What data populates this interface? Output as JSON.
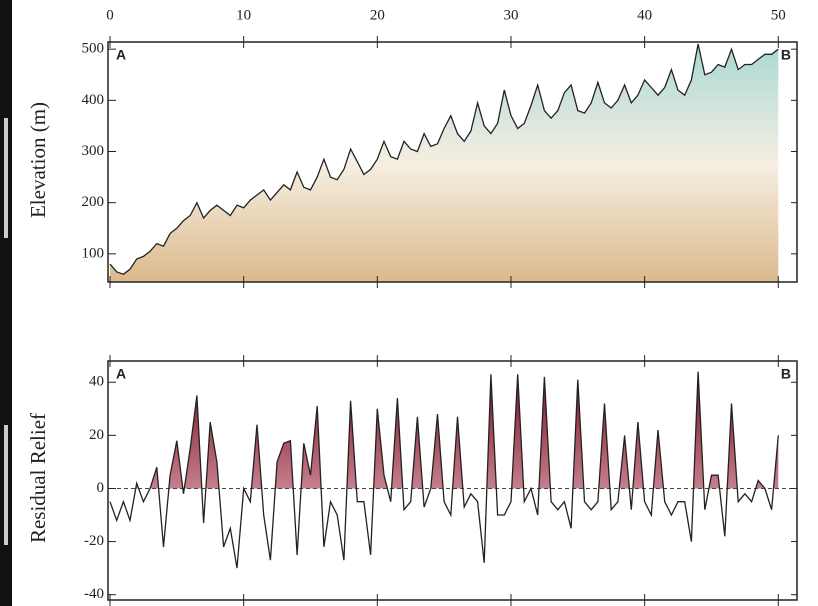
{
  "chart_data": [
    {
      "type": "line",
      "y_label": "Elevation (m)",
      "annotations": [
        "A",
        "B"
      ],
      "xlim": [
        0,
        51.4
      ],
      "xticks": [
        0,
        10,
        20,
        30,
        40,
        50
      ],
      "ylim": [
        45,
        514
      ],
      "yticks": [
        100,
        200,
        300,
        400,
        500
      ],
      "x": [
        0,
        0.5,
        1,
        1.5,
        2,
        2.5,
        3,
        3.5,
        4,
        4.5,
        5,
        5.5,
        6,
        6.5,
        7,
        7.5,
        8,
        8.5,
        9,
        9.5,
        10,
        10.5,
        11,
        11.5,
        12,
        12.5,
        13,
        13.5,
        14,
        14.5,
        15,
        15.5,
        16,
        16.5,
        17,
        17.5,
        18,
        18.5,
        19,
        19.5,
        20,
        20.5,
        21,
        21.5,
        22,
        22.5,
        23,
        23.5,
        24,
        24.5,
        25,
        25.5,
        26,
        26.5,
        27,
        27.5,
        28,
        28.5,
        29,
        29.5,
        30,
        30.5,
        31,
        31.5,
        32,
        32.5,
        33,
        33.5,
        34,
        34.5,
        35,
        35.5,
        36,
        36.5,
        37,
        37.5,
        38,
        38.5,
        39,
        39.5,
        40,
        40.5,
        41,
        41.5,
        42,
        42.5,
        43,
        43.5,
        44,
        44.5,
        45,
        45.5,
        46,
        46.5,
        47,
        47.5,
        48,
        48.5,
        49,
        49.5,
        50
      ],
      "series": [
        {
          "color": "#222222",
          "values": [
            80,
            65,
            60,
            70,
            90,
            95,
            105,
            120,
            115,
            140,
            150,
            165,
            175,
            200,
            170,
            185,
            195,
            185,
            175,
            195,
            190,
            205,
            215,
            225,
            205,
            220,
            235,
            225,
            260,
            230,
            225,
            250,
            285,
            250,
            245,
            265,
            305,
            280,
            255,
            265,
            285,
            320,
            290,
            285,
            320,
            305,
            300,
            335,
            310,
            315,
            345,
            370,
            335,
            320,
            340,
            395,
            350,
            335,
            355,
            420,
            370,
            345,
            355,
            390,
            430,
            380,
            365,
            380,
            415,
            430,
            380,
            375,
            395,
            435,
            395,
            385,
            400,
            430,
            395,
            410,
            440,
            425,
            410,
            425,
            460,
            420,
            410,
            440,
            510,
            450,
            455,
            470,
            465,
            500,
            460,
            470,
            470,
            480,
            490,
            490,
            500
          ]
        }
      ]
    },
    {
      "type": "line",
      "y_label": "Residual Relief",
      "annotations": [
        "A",
        "B"
      ],
      "xlim": [
        0,
        51.4
      ],
      "ylim": [
        -42,
        48
      ],
      "yticks": [
        -40,
        -20,
        0,
        20,
        40
      ],
      "x": [
        0,
        0.5,
        1,
        1.5,
        2,
        2.5,
        3,
        3.5,
        4,
        4.5,
        5,
        5.5,
        6,
        6.5,
        7,
        7.5,
        8,
        8.5,
        9,
        9.5,
        10,
        10.5,
        11,
        11.5,
        12,
        12.5,
        13,
        13.5,
        14,
        14.5,
        15,
        15.5,
        16,
        16.5,
        17,
        17.5,
        18,
        18.5,
        19,
        19.5,
        20,
        20.5,
        21,
        21.5,
        22,
        22.5,
        23,
        23.5,
        24,
        24.5,
        25,
        25.5,
        26,
        26.5,
        27,
        27.5,
        28,
        28.5,
        29,
        29.5,
        30,
        30.5,
        31,
        31.5,
        32,
        32.5,
        33,
        33.5,
        34,
        34.5,
        35,
        35.5,
        36,
        36.5,
        37,
        37.5,
        38,
        38.5,
        39,
        39.5,
        40,
        40.5,
        41,
        41.5,
        42,
        42.5,
        43,
        43.5,
        44,
        44.5,
        45,
        45.5,
        46,
        46.5,
        47,
        47.5,
        48,
        48.5,
        49,
        49.5,
        50
      ],
      "series": [
        {
          "color": "#222222",
          "values": [
            -5,
            -12,
            -5,
            -12,
            2,
            -5,
            0,
            8,
            -22,
            5,
            18,
            -2,
            15,
            35,
            -13,
            25,
            10,
            -22,
            -15,
            -30,
            0,
            -5,
            24,
            -10,
            -27,
            10,
            17,
            18,
            -25,
            17,
            5,
            31,
            -22,
            -5,
            -10,
            -27,
            33,
            -5,
            -5,
            -25,
            30,
            5,
            -5,
            34,
            -8,
            -5,
            27,
            -7,
            0,
            28,
            -5,
            -10,
            27,
            -7,
            -2,
            -5,
            -28,
            43,
            -10,
            -10,
            -5,
            43,
            -5,
            0,
            -10,
            42,
            -5,
            -8,
            -5,
            -15,
            41,
            -5,
            -8,
            -5,
            32,
            -8,
            -5,
            20,
            -8,
            25,
            -5,
            -10,
            22,
            -5,
            -10,
            -5,
            -5,
            -20,
            44,
            -8,
            5,
            5,
            -18,
            32,
            -5,
            -2,
            -5,
            3,
            0,
            -8,
            20
          ]
        }
      ]
    }
  ]
}
